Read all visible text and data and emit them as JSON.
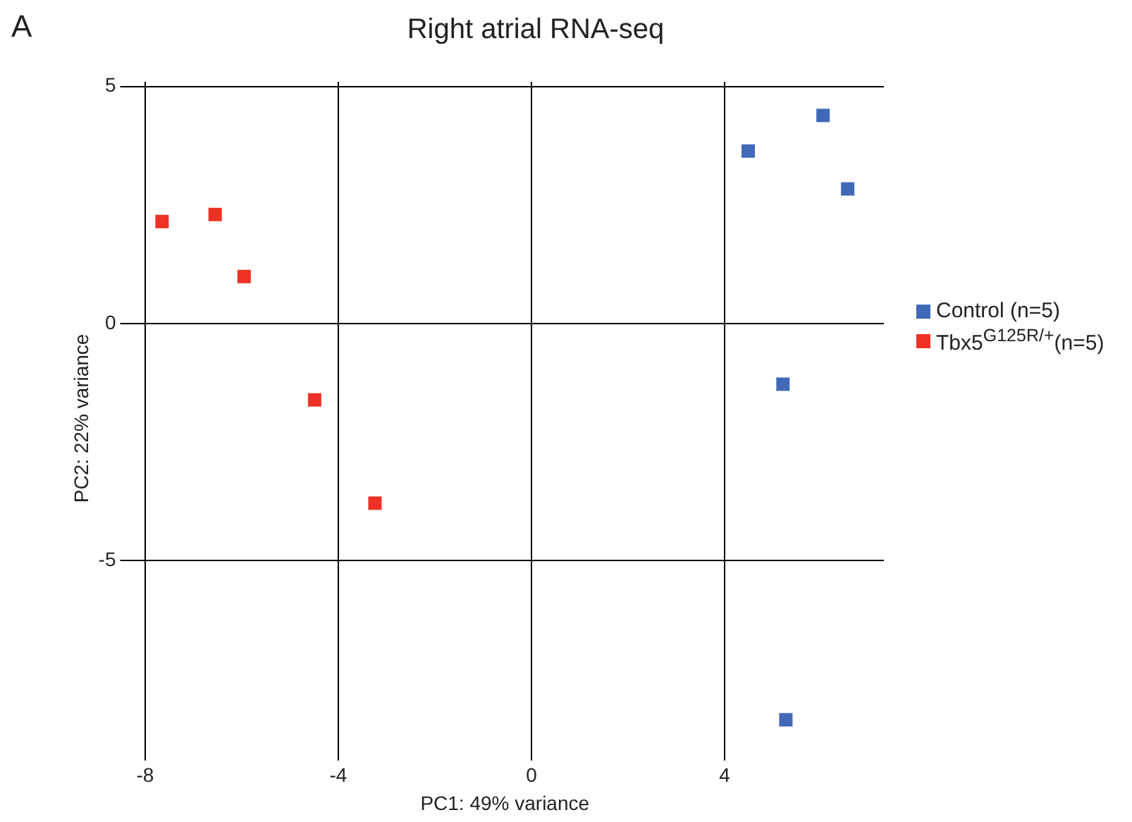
{
  "chart_data": {
    "type": "scatter",
    "title": "Right atrial RNA-seq",
    "xlabel": "PC1: 49% variance",
    "ylabel": "PC2: 22% variance",
    "annotations": [
      "A"
    ],
    "xlim": [
      -8.4,
      7.3
    ],
    "xticks": [
      -8,
      -4,
      0,
      4
    ],
    "ylim": [
      -9.1,
      5.1
    ],
    "yticks": [
      -5,
      0,
      5
    ],
    "grid": true,
    "legend": "right",
    "marker": "square",
    "series": [
      {
        "name": "Control (n=5)",
        "color": "#4169b8",
        "x": [
          6.04,
          4.49,
          6.55,
          5.21,
          5.27
        ],
        "values": [
          4.39,
          3.64,
          2.84,
          -1.28,
          -8.36
        ]
      },
      {
        "name": "Tbx5$^{G125R/+}$(n=5)",
        "color": "#ee3124",
        "x": [
          -7.65,
          -6.55,
          -5.95,
          -4.49,
          -3.24
        ],
        "values": [
          2.15,
          2.3,
          0.99,
          -1.61,
          -3.79
        ]
      }
    ]
  }
}
